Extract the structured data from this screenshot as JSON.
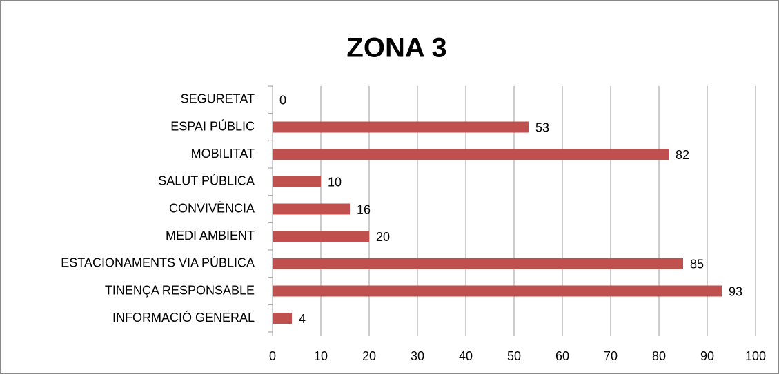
{
  "chart_data": {
    "type": "bar",
    "orientation": "horizontal",
    "title": "ZONA 3",
    "categories": [
      "SEGURETAT",
      "ESPAI PÚBLIC",
      "MOBILITAT",
      "SALUT PÚBLICA",
      "CONVIVÈNCIA",
      "MEDI AMBIENT",
      "ESTACIONAMENTS VIA PÚBLICA",
      "TINENÇA RESPONSABLE",
      "INFORMACIÓ GENERAL"
    ],
    "values": [
      0,
      53,
      82,
      10,
      16,
      20,
      85,
      93,
      4
    ],
    "color": "#c0504d",
    "xlim": [
      0,
      100
    ],
    "xticks": [
      0,
      10,
      20,
      30,
      40,
      50,
      60,
      70,
      80,
      90,
      100
    ],
    "grid": true
  }
}
